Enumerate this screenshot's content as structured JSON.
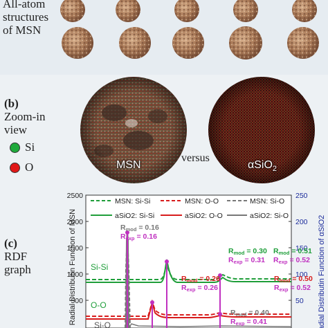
{
  "panel_a": {
    "caption_lines": [
      "All-atom",
      "structures",
      "of MSN"
    ]
  },
  "panel_b": {
    "letter": "(b)",
    "caption_lines": [
      "Zoom-in",
      "view"
    ],
    "legend": [
      {
        "label": "Si",
        "color": "#1faa3c"
      },
      {
        "label": "O",
        "color": "#e01818"
      }
    ],
    "left_sphere_label": "MSN",
    "versus": "versus",
    "right_sphere_label": "αSiO",
    "right_sphere_sub": "2"
  },
  "panel_c": {
    "letter": "(c)",
    "caption_lines": [
      "RDF",
      "graph"
    ]
  },
  "chart_data": {
    "type": "line",
    "ylabel_left": "Radial Distributin Function of MSN",
    "ylabel_right": "Radial Distributin Function of αSiO2",
    "left_ticks": [
      500,
      1000,
      1500,
      2000,
      2500
    ],
    "right_ticks": [
      50,
      100,
      150,
      200,
      250
    ],
    "legend": [
      {
        "name": "MSN: Si-Si",
        "color": "#1f9e3a",
        "dash": true
      },
      {
        "name": "MSN: O-O",
        "color": "#d81c1c",
        "dash": true
      },
      {
        "name": "MSN: Si-O",
        "color": "#777777",
        "dash": true
      },
      {
        "name": "aSiO2: Si-Si",
        "color": "#1f9e3a",
        "dash": false
      },
      {
        "name": "aSiO2: O-O",
        "color": "#d81c1c",
        "dash": false
      },
      {
        "name": "aSiO2: Si-O",
        "color": "#777777",
        "dash": false
      }
    ],
    "curve_labels": [
      {
        "text": "Si-Si",
        "color": "#1f9e3a"
      },
      {
        "text": "O-O",
        "color": "#1f9e3a"
      },
      {
        "text": "Si-O",
        "color": "#555555"
      }
    ],
    "annotations": [
      {
        "mod": "0.16",
        "exp": "0.16",
        "mod_color": "#777777",
        "exp_color": "#c030c0"
      },
      {
        "mod": "0.30",
        "exp": "0.31",
        "mod_color": "#1f9e3a",
        "exp_color": "#c030c0"
      },
      {
        "mod": "0.51",
        "exp": "0.52",
        "mod_color": "#1f9e3a",
        "exp_color": "#c030c0"
      },
      {
        "mod": "0.26",
        "exp": "0.26",
        "mod_color": "#d81c1c",
        "exp_color": "#c030c0"
      },
      {
        "mod": "0.50",
        "exp": "0.52",
        "mod_color": "#d81c1c",
        "exp_color": "#c030c0"
      },
      {
        "mod": "0.40",
        "exp": "0.41",
        "mod_color": "#777777",
        "exp_color": "#c030c0"
      }
    ],
    "r_label": "R",
    "mod_sub": "mod",
    "exp_sub": "exp",
    "eq": " = "
  }
}
